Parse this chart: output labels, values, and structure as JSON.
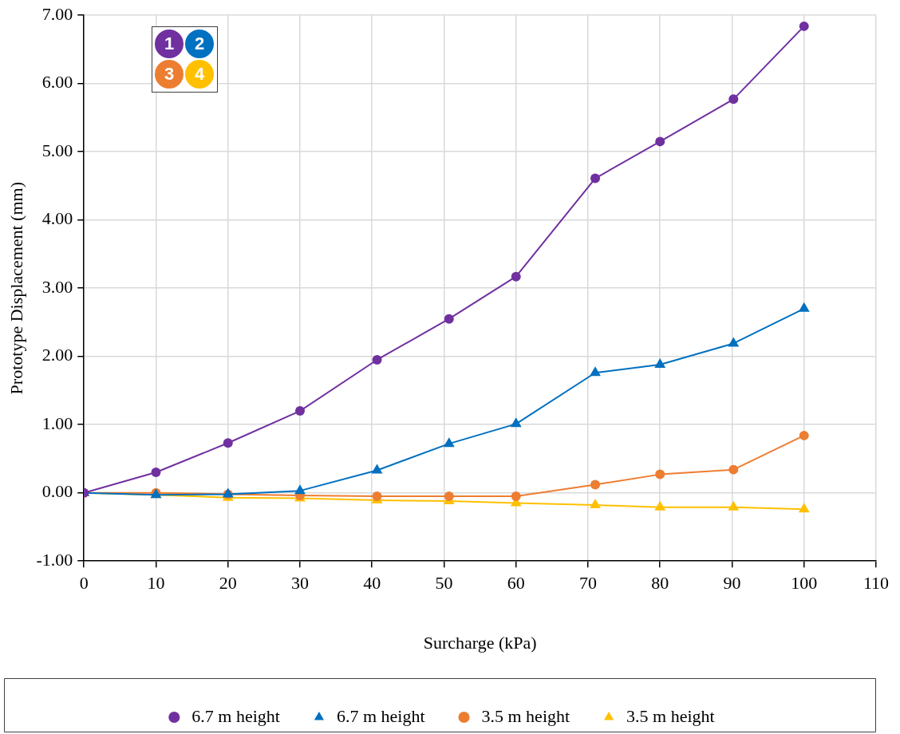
{
  "chart_data": {
    "type": "line",
    "xlabel": "Surcharge (kPa)",
    "ylabel": "Prototype Displacement (mm)",
    "xlim": [
      0,
      110
    ],
    "xticks": [
      0,
      10,
      20,
      30,
      40,
      50,
      60,
      70,
      80,
      90,
      100,
      110
    ],
    "ylim": [
      -1,
      7
    ],
    "yticks": [
      {
        "value": -1,
        "label": "-1.00"
      },
      {
        "value": 0,
        "label": "0.00"
      },
      {
        "value": 1,
        "label": "1.00"
      },
      {
        "value": 2,
        "label": "2.00"
      },
      {
        "value": 3,
        "label": "3.00"
      },
      {
        "value": 4,
        "label": "4.00"
      },
      {
        "value": 5,
        "label": "5.00"
      },
      {
        "value": 6,
        "label": "6.00"
      },
      {
        "value": 7,
        "label": "7.00"
      }
    ],
    "grid": true,
    "legend": "bottom",
    "line_style": "solid",
    "x": [
      0,
      10,
      20,
      30,
      40.7,
      50.7,
      60,
      71,
      80,
      90.2,
      100
    ],
    "annotations": [
      "1",
      "2",
      "3",
      "4"
    ],
    "series": [
      {
        "name": "6.7 m height",
        "color": "#7030a0",
        "marker": "circle",
        "values": [
          0,
          0.3,
          0.73,
          1.2,
          1.95,
          2.55,
          3.17,
          4.61,
          5.15,
          5.77,
          6.84
        ]
      },
      {
        "name": "6.7 m height",
        "color": "#0070c0",
        "marker": "triangle",
        "values": [
          0,
          -0.03,
          -0.02,
          0.03,
          0.33,
          0.72,
          1.01,
          1.76,
          1.88,
          2.19,
          2.7
        ]
      },
      {
        "name": "3.5 m height",
        "color": "#ed7d31",
        "marker": "circle",
        "values": [
          0,
          0,
          -0.02,
          -0.04,
          -0.05,
          -0.05,
          -0.05,
          0.12,
          0.27,
          0.34,
          0.84
        ]
      },
      {
        "name": "3.5 m height",
        "color": "#ffc000",
        "marker": "triangle",
        "values": [
          0,
          -0.03,
          -0.07,
          -0.08,
          -0.11,
          -0.12,
          -0.15,
          -0.18,
          -0.21,
          -0.21,
          -0.24
        ]
      }
    ]
  }
}
